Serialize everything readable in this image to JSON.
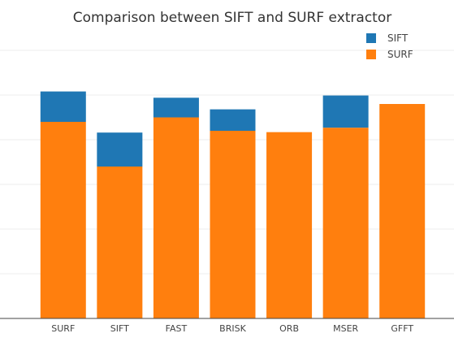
{
  "chart_data": {
    "type": "bar",
    "stacked": true,
    "title": "Comparison between SIFT and SURF extractor",
    "categories": [
      "SURF",
      "SIFT",
      "FAST",
      "BRISK",
      "ORB",
      "MSER",
      "GFFT"
    ],
    "series": [
      {
        "name": "SURF",
        "color": "#ff7f0e",
        "values": [
          4.4,
          3.4,
          4.5,
          4.2,
          4.17,
          4.27,
          4.8
        ]
      },
      {
        "name": "SIFT",
        "color": "#1f77b4",
        "values": [
          0.68,
          0.76,
          0.44,
          0.48,
          0,
          0.72,
          0
        ]
      }
    ],
    "legend_order": [
      "SIFT",
      "SURF"
    ],
    "legend_position": "top-right",
    "ylim": [
      0,
      6.4
    ],
    "y_gridlines": [
      1,
      2,
      3,
      4,
      5,
      6
    ],
    "y_tick_labels_visible": false,
    "grid": true
  }
}
